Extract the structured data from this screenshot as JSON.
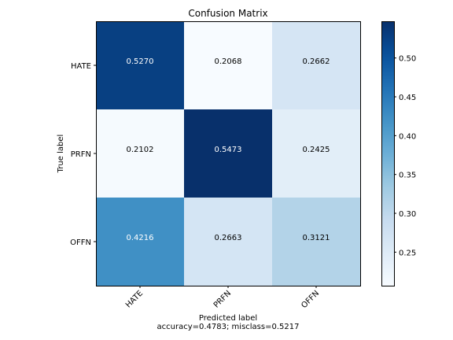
{
  "chart_data": {
    "type": "heatmap",
    "title": "Confusion Matrix",
    "xlabel": "Predicted label",
    "ylabel": "True label",
    "subtitle": "accuracy=0.4783; misclass=0.5217",
    "x_categories": [
      "HATE",
      "PRFN",
      "OFFN"
    ],
    "y_categories": [
      "HATE",
      "PRFN",
      "OFFN"
    ],
    "values": [
      [
        0.527,
        0.2068,
        0.2662
      ],
      [
        0.2102,
        0.5473,
        0.2425
      ],
      [
        0.4216,
        0.2663,
        0.3121
      ]
    ],
    "cell_labels": [
      [
        "0.5270",
        "0.2068",
        "0.2662"
      ],
      [
        "0.2102",
        "0.5473",
        "0.2425"
      ],
      [
        "0.4216",
        "0.2663",
        "0.3121"
      ]
    ],
    "colormap": "Blues",
    "color_range": [
      0.2068,
      0.5473
    ],
    "colorbar_ticks": [
      0.25,
      0.3,
      0.35,
      0.4,
      0.45,
      0.5
    ],
    "colorbar_tick_labels": [
      "0.25",
      "0.30",
      "0.35",
      "0.40",
      "0.45",
      "0.50"
    ],
    "grid": false
  }
}
